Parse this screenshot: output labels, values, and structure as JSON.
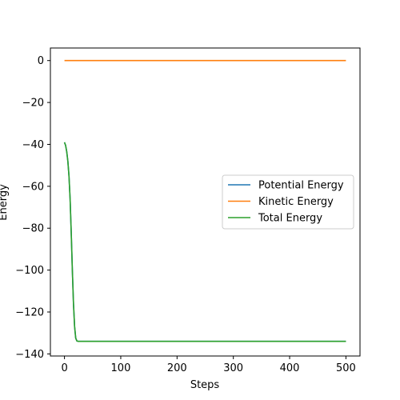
{
  "chart_data": {
    "type": "line",
    "title": "",
    "xlabel": "Steps",
    "ylabel": "Energy",
    "xlim": [
      -25,
      525
    ],
    "ylim": [
      -141,
      6
    ],
    "xticks": [
      0,
      100,
      200,
      300,
      400,
      500
    ],
    "yticks": [
      0,
      -20,
      -40,
      -60,
      -80,
      -100,
      -120,
      -140
    ],
    "grid": false,
    "legend_position": "center-right",
    "series": [
      {
        "name": "Potential Energy",
        "color": "#1f77b4",
        "x": [
          0,
          2,
          4,
          6,
          8,
          10,
          12,
          14,
          16,
          18,
          20,
          22,
          24,
          30,
          50,
          100,
          200,
          300,
          400,
          500
        ],
        "y": [
          -39,
          -40.5,
          -43.5,
          -48,
          -55,
          -66,
          -82,
          -100,
          -116,
          -127,
          -132.5,
          -133.8,
          -134,
          -134,
          -134,
          -134,
          -134,
          -134,
          -134,
          -134
        ]
      },
      {
        "name": "Kinetic Energy",
        "color": "#ff7f0e",
        "x": [
          0,
          100,
          200,
          300,
          400,
          500
        ],
        "y": [
          0,
          0,
          0,
          0,
          0,
          0
        ]
      },
      {
        "name": "Total Energy",
        "color": "#2ca02c",
        "x": [
          0,
          2,
          4,
          6,
          8,
          10,
          12,
          14,
          16,
          18,
          20,
          22,
          24,
          30,
          50,
          100,
          200,
          300,
          400,
          500
        ],
        "y": [
          -39,
          -40.5,
          -43.5,
          -48,
          -55,
          -66,
          -82,
          -100,
          -116,
          -127,
          -132.5,
          -133.8,
          -134,
          -134,
          -134,
          -134,
          -134,
          -134,
          -134,
          -134
        ]
      }
    ]
  }
}
